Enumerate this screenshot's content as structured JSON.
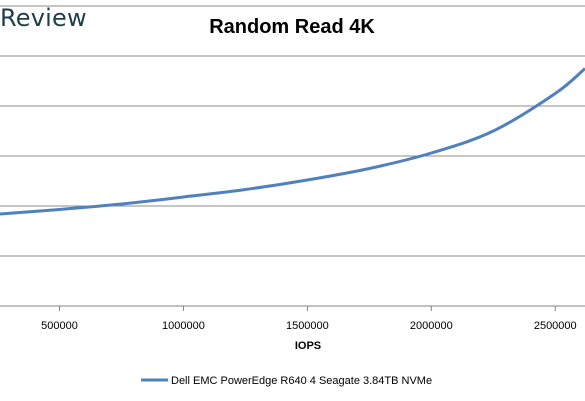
{
  "watermark": "Review",
  "chart_data": {
    "type": "line",
    "title": "Random Read 4K",
    "xlabel": "IOPS",
    "ylabel": "",
    "x_ticks": [
      500000,
      1000000,
      1500000,
      2000000,
      2500000
    ],
    "x_tick_labels": [
      "500000",
      "1000000",
      "1500000",
      "2000000",
      "2500000"
    ],
    "xlim": [
      260000,
      2620000
    ],
    "ylim": [
      0,
      6
    ],
    "grid": true,
    "legend": "bottom",
    "series": [
      {
        "name": "Dell EMC PowerEdge R640 4 Seagate 3.84TB NVMe",
        "color": "#4f81bd",
        "x": [
          260000,
          500000,
          750000,
          1000000,
          1250000,
          1500000,
          1750000,
          2000000,
          2250000,
          2500000,
          2620000
        ],
        "y": [
          1.84,
          1.93,
          2.04,
          2.18,
          2.33,
          2.52,
          2.75,
          3.06,
          3.5,
          4.25,
          4.75
        ]
      }
    ]
  }
}
